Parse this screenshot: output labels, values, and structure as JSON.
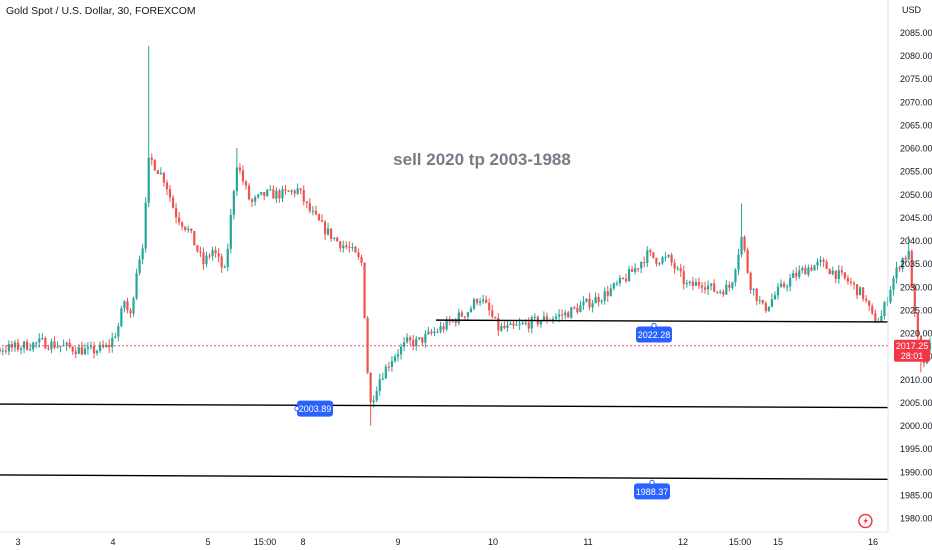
{
  "header": {
    "symbol_title": "Gold Spot / U.S. Dollar, 30, FOREXCOM",
    "currency": "USD"
  },
  "annotation": "sell  2020   tp 2003-1988",
  "price_tag": {
    "price": "2017.25",
    "countdown": "28:01"
  },
  "level_labels": [
    {
      "text": "2022.28",
      "price": 2022.28
    },
    {
      "text": "2003.89",
      "price": 2003.89
    },
    {
      "text": "1988.37",
      "price": 1988.37
    }
  ],
  "event_icons": [
    {
      "icon": "flash-earnings-icon",
      "x_value": 11.92
    },
    {
      "icon": "us-flag-icon",
      "x_value": 12.9
    }
  ],
  "colors": {
    "up": "#26a69a",
    "down": "#ef5350",
    "level_line": "#000000",
    "label_bg": "#2962ff",
    "price_tag_bg": "#f23645",
    "annotation": "#787b86"
  },
  "chart_data": {
    "type": "candlestick",
    "title": "Gold Spot / U.S. Dollar, 30, FOREXCOM",
    "ylabel": "USD",
    "ylim": [
      1977,
      2092
    ],
    "y_ticks": [
      2085,
      2080,
      2075,
      2070,
      2065,
      2060,
      2055,
      2050,
      2045,
      2040,
      2035,
      2030,
      2025,
      2020,
      2015,
      2010,
      2005,
      2000,
      1995,
      1990,
      1985,
      1980
    ],
    "x_ticks": [
      {
        "label": "3",
        "x": 3.0
      },
      {
        "label": "4",
        "x": 4.0
      },
      {
        "label": "5",
        "x": 5.0
      },
      {
        "label": "15:00",
        "x": 5.6
      },
      {
        "label": "8",
        "x": 6.0
      },
      {
        "label": "9",
        "x": 7.0
      },
      {
        "label": "10",
        "x": 8.0
      },
      {
        "label": "11",
        "x": 9.0
      },
      {
        "label": "12",
        "x": 10.0
      },
      {
        "label": "15:00",
        "x": 10.6
      },
      {
        "label": "15",
        "x": 11.0
      },
      {
        "label": "16",
        "x": 12.0
      }
    ],
    "horizontal_levels": [
      {
        "price_start": 2022.8,
        "price_end": 2022.4,
        "x_start": 7.4
      },
      {
        "price_start": 2004.7,
        "price_end": 2003.9,
        "x_start": 2.2
      },
      {
        "price_start": 1989.4,
        "price_end": 1988.4,
        "x_start": 2.2
      }
    ],
    "current_price": 2017.25,
    "path": [
      [
        2.2,
        1986.5
      ],
      [
        2.35,
        1988.5
      ],
      [
        2.45,
        2013
      ],
      [
        2.6,
        2017
      ],
      [
        2.8,
        2016.5
      ],
      [
        3.0,
        2017
      ],
      [
        3.25,
        2018
      ],
      [
        3.5,
        2017
      ],
      [
        3.75,
        2016
      ],
      [
        3.95,
        2017
      ],
      [
        4.05,
        2021
      ],
      [
        4.12,
        2027
      ],
      [
        4.18,
        2023
      ],
      [
        4.25,
        2034
      ],
      [
        4.32,
        2040
      ],
      [
        4.38,
        2058
      ],
      [
        4.45,
        2056
      ],
      [
        4.55,
        2053
      ],
      [
        4.65,
        2046
      ],
      [
        4.8,
        2042
      ],
      [
        4.95,
        2035
      ],
      [
        5.05,
        2038
      ],
      [
        5.18,
        2033
      ],
      [
        5.3,
        2057
      ],
      [
        5.45,
        2048
      ],
      [
        5.6,
        2050
      ],
      [
        5.8,
        2050
      ],
      [
        5.95,
        2051
      ],
      [
        6.05,
        2047
      ],
      [
        6.2,
        2043
      ],
      [
        6.35,
        2040
      ],
      [
        6.5,
        2038
      ],
      [
        6.62,
        2035
      ],
      [
        6.7,
        2004
      ],
      [
        6.8,
        2010
      ],
      [
        6.95,
        2015
      ],
      [
        7.1,
        2018
      ],
      [
        7.2,
        2018
      ],
      [
        7.45,
        2021
      ],
      [
        7.6,
        2023
      ],
      [
        7.75,
        2025
      ],
      [
        7.85,
        2028
      ],
      [
        7.95,
        2025
      ],
      [
        8.05,
        2021
      ],
      [
        8.2,
        2021
      ],
      [
        8.35,
        2022
      ],
      [
        8.55,
        2023
      ],
      [
        8.75,
        2024
      ],
      [
        8.95,
        2026
      ],
      [
        9.15,
        2028
      ],
      [
        9.35,
        2031
      ],
      [
        9.5,
        2034
      ],
      [
        9.62,
        2037
      ],
      [
        9.72,
        2036
      ],
      [
        9.85,
        2036
      ],
      [
        9.95,
        2033
      ],
      [
        10.05,
        2030
      ],
      [
        10.2,
        2031
      ],
      [
        10.35,
        2029
      ],
      [
        10.5,
        2030
      ],
      [
        10.62,
        2041
      ],
      [
        10.7,
        2031
      ],
      [
        10.85,
        2025
      ],
      [
        11.0,
        2029
      ],
      [
        11.15,
        2032
      ],
      [
        11.3,
        2034
      ],
      [
        11.45,
        2035
      ],
      [
        11.6,
        2033
      ],
      [
        11.75,
        2031
      ],
      [
        11.9,
        2028
      ],
      [
        12.0,
        2023
      ],
      [
        12.08,
        2023
      ],
      [
        12.2,
        2031
      ],
      [
        12.3,
        2036
      ],
      [
        12.38,
        2037
      ],
      [
        12.45,
        2021
      ],
      [
        12.52,
        2013
      ],
      [
        12.6,
        2017
      ]
    ],
    "spikes": [
      {
        "x": 4.38,
        "high": 2082
      },
      {
        "x": 5.3,
        "high": 2060
      },
      {
        "x": 6.72,
        "low": 2000
      },
      {
        "x": 10.62,
        "high": 2048
      },
      {
        "x": 12.38,
        "high": 2041
      },
      {
        "x": 12.52,
        "low": 2011.5
      }
    ]
  }
}
